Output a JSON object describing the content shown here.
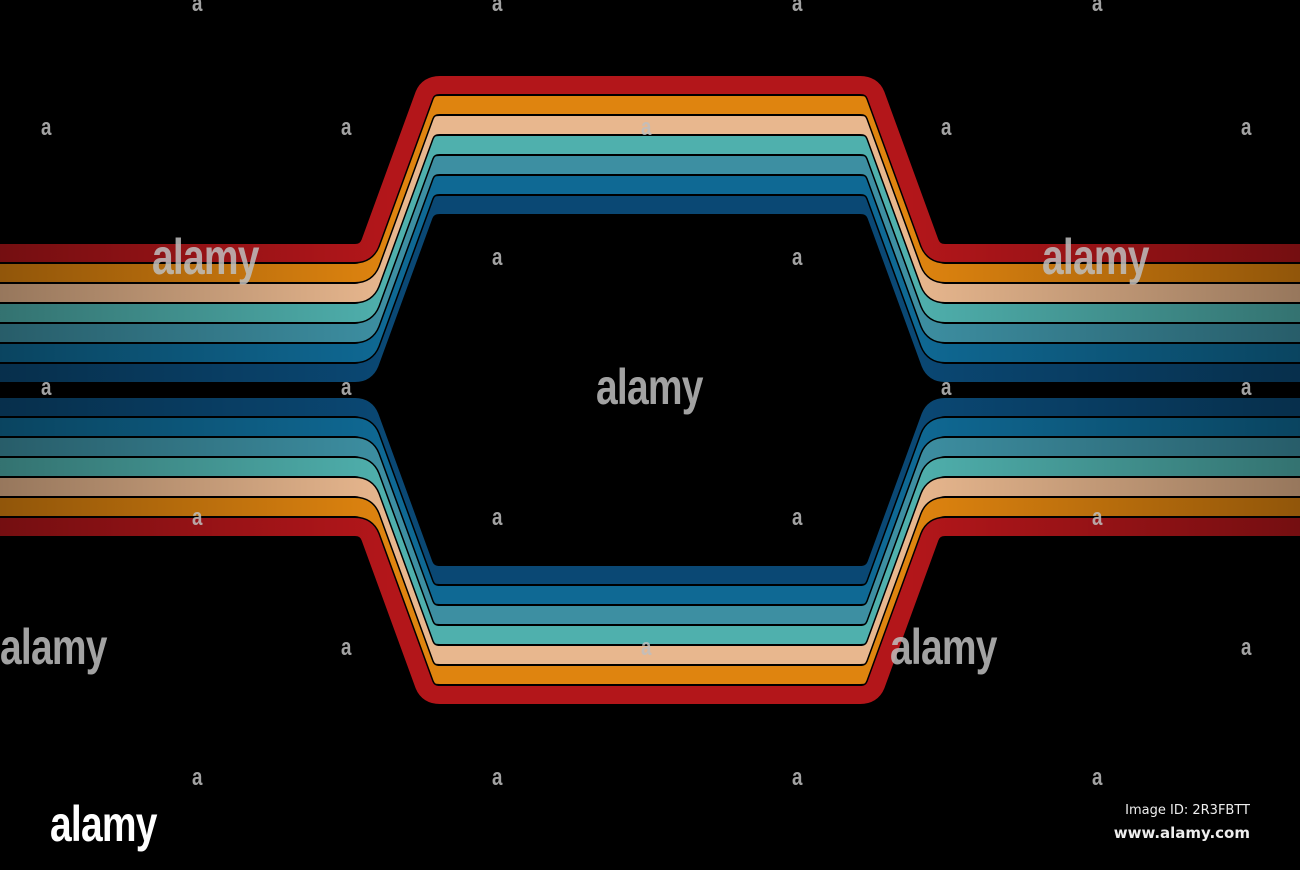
{
  "artwork": {
    "stripe_colors": [
      "#b3161a",
      "#df840f",
      "#e8b78e",
      "#4fb0ad",
      "#3d8fa2",
      "#0f6994",
      "#0a4874"
    ],
    "outline_color": "#000000",
    "background": "#000000"
  },
  "watermark": {
    "letter": "a",
    "word": "alamy"
  },
  "logo": {
    "text": "alamy"
  },
  "footer": {
    "image_id": "Image ID: 2R3FBTT",
    "url": "www.alamy.com"
  }
}
